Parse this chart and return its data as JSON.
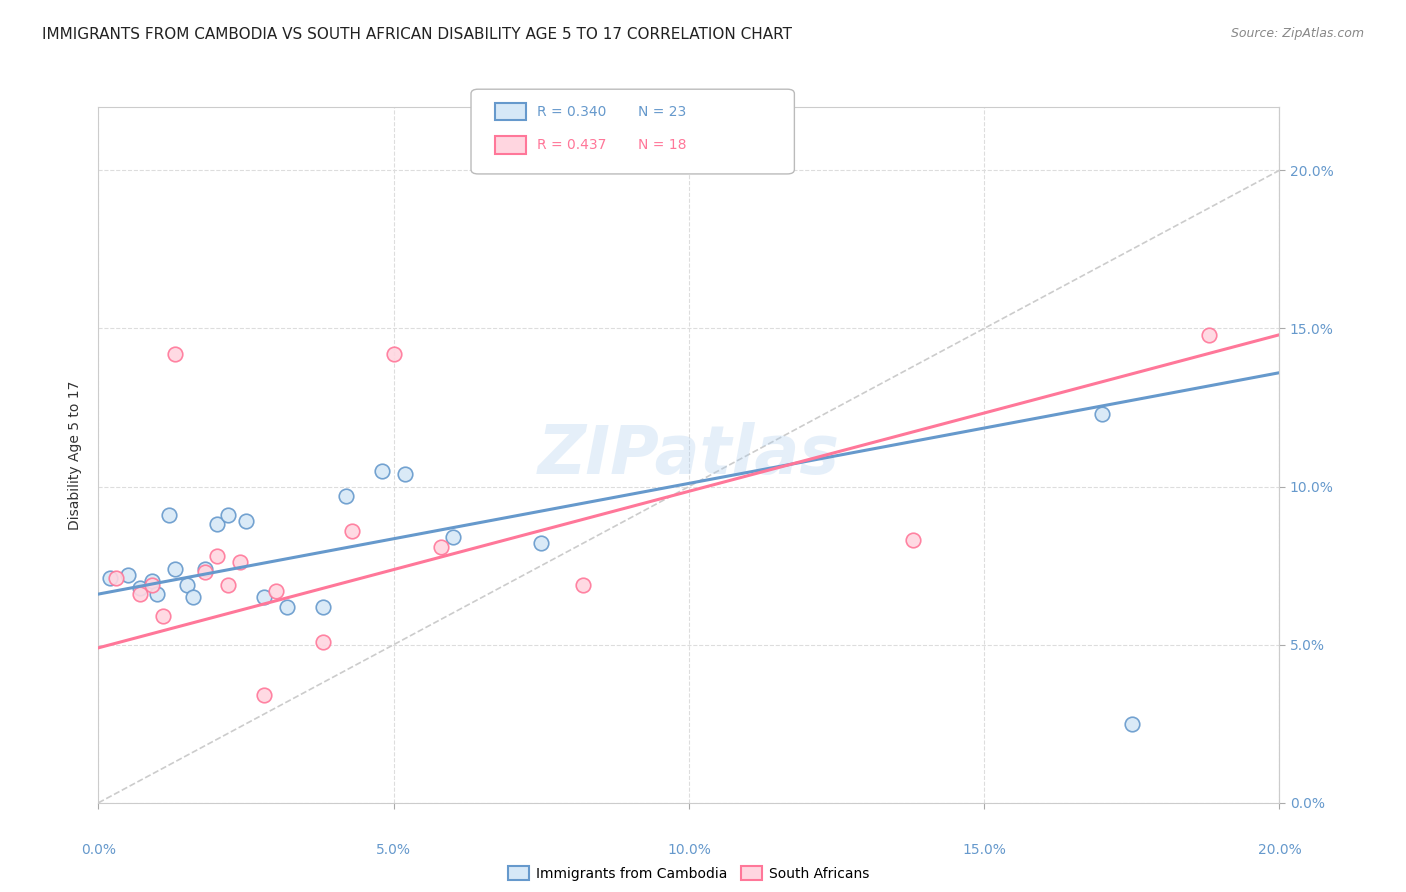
{
  "title": "IMMIGRANTS FROM CAMBODIA VS SOUTH AFRICAN DISABILITY AGE 5 TO 17 CORRELATION CHART",
  "source": "Source: ZipAtlas.com",
  "ylabel": "Disability Age 5 to 17",
  "xlim": [
    0.0,
    0.2
  ],
  "ylim": [
    0.0,
    0.22
  ],
  "yticks": [
    0.0,
    0.05,
    0.1,
    0.15,
    0.2
  ],
  "xticks": [
    0.0,
    0.05,
    0.1,
    0.15,
    0.2
  ],
  "watermark": "ZIPatlas",
  "legend1_r": "R = 0.340",
  "legend1_n": "N = 23",
  "legend2_r": "R = 0.437",
  "legend2_n": "N = 18",
  "blue_color": "#6699CC",
  "pink_color": "#FF7799",
  "blue_fill": "#D6E8F7",
  "pink_fill": "#FFD6E0",
  "diag_color": "#CCCCCC",
  "blue_scatter_x": [
    0.002,
    0.005,
    0.007,
    0.009,
    0.01,
    0.012,
    0.013,
    0.015,
    0.016,
    0.018,
    0.02,
    0.022,
    0.025,
    0.028,
    0.032,
    0.038,
    0.042,
    0.048,
    0.052,
    0.06,
    0.075,
    0.17,
    0.175
  ],
  "blue_scatter_y": [
    0.071,
    0.072,
    0.068,
    0.07,
    0.066,
    0.091,
    0.074,
    0.069,
    0.065,
    0.074,
    0.088,
    0.091,
    0.089,
    0.065,
    0.062,
    0.062,
    0.097,
    0.105,
    0.104,
    0.084,
    0.082,
    0.123,
    0.025
  ],
  "pink_scatter_x": [
    0.003,
    0.007,
    0.009,
    0.011,
    0.013,
    0.018,
    0.02,
    0.022,
    0.024,
    0.028,
    0.03,
    0.038,
    0.043,
    0.05,
    0.058,
    0.082,
    0.138,
    0.188
  ],
  "pink_scatter_y": [
    0.071,
    0.066,
    0.069,
    0.059,
    0.142,
    0.073,
    0.078,
    0.069,
    0.076,
    0.034,
    0.067,
    0.051,
    0.086,
    0.142,
    0.081,
    0.069,
    0.083,
    0.148
  ],
  "blue_line_x": [
    0.0,
    0.2
  ],
  "blue_line_y": [
    0.066,
    0.136
  ],
  "pink_line_x": [
    0.0,
    0.2
  ],
  "pink_line_y": [
    0.049,
    0.148
  ],
  "title_fontsize": 11,
  "label_fontsize": 10,
  "tick_fontsize": 10,
  "source_fontsize": 9,
  "marker_size": 110,
  "legend_label_blue": "Immigrants from Cambodia",
  "legend_label_pink": "South Africans"
}
